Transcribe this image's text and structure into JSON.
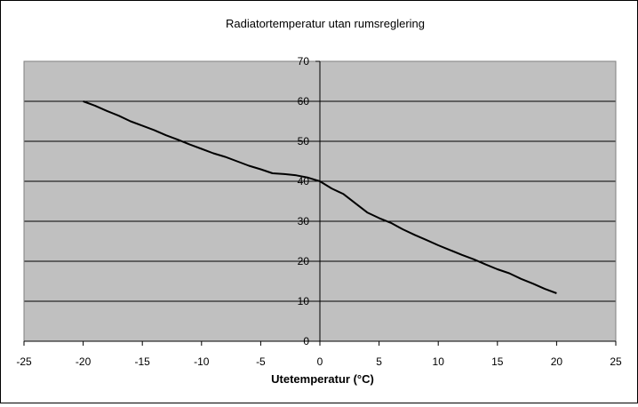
{
  "chart_data": {
    "type": "line",
    "title": "Radiatortemperatur utan rumsreglering",
    "xlabel": "Utetemperatur  (°C)",
    "ylabel": "",
    "xlim": [
      -25,
      25
    ],
    "ylim": [
      0,
      70
    ],
    "x_ticks": [
      -25,
      -20,
      -15,
      -10,
      -5,
      0,
      5,
      10,
      15,
      20,
      25
    ],
    "y_ticks": [
      0,
      10,
      20,
      30,
      40,
      50,
      60,
      70
    ],
    "grid": "horizontal",
    "legend": "none",
    "series": [
      {
        "x": [
          -20,
          -19,
          -18,
          -17,
          -16,
          -15,
          -14,
          -13,
          -12,
          -11,
          -10,
          -9,
          -8,
          -7,
          -6,
          -5,
          -4,
          -3,
          -2,
          -1,
          0,
          1,
          2,
          3,
          4,
          5,
          6,
          7,
          8,
          9,
          10,
          11,
          12,
          13,
          14,
          15,
          16,
          17,
          18,
          19,
          20
        ],
        "y": [
          60,
          58.9,
          57.6,
          56.4,
          55,
          53.9,
          52.8,
          51.5,
          50.4,
          49.2,
          48.1,
          47,
          46.1,
          45,
          43.9,
          43,
          42,
          41.8,
          41.5,
          40.9,
          40,
          38.2,
          36.8,
          34.5,
          32.2,
          30.8,
          29.6,
          28,
          26.6,
          25.3,
          24,
          22.8,
          21.6,
          20.5,
          19.2,
          18,
          17,
          15.6,
          14.4,
          13.1,
          12
        ]
      }
    ],
    "colors": {
      "plot_background": "#c0c0c0",
      "line": "#000000",
      "gridline": "#000000"
    }
  }
}
